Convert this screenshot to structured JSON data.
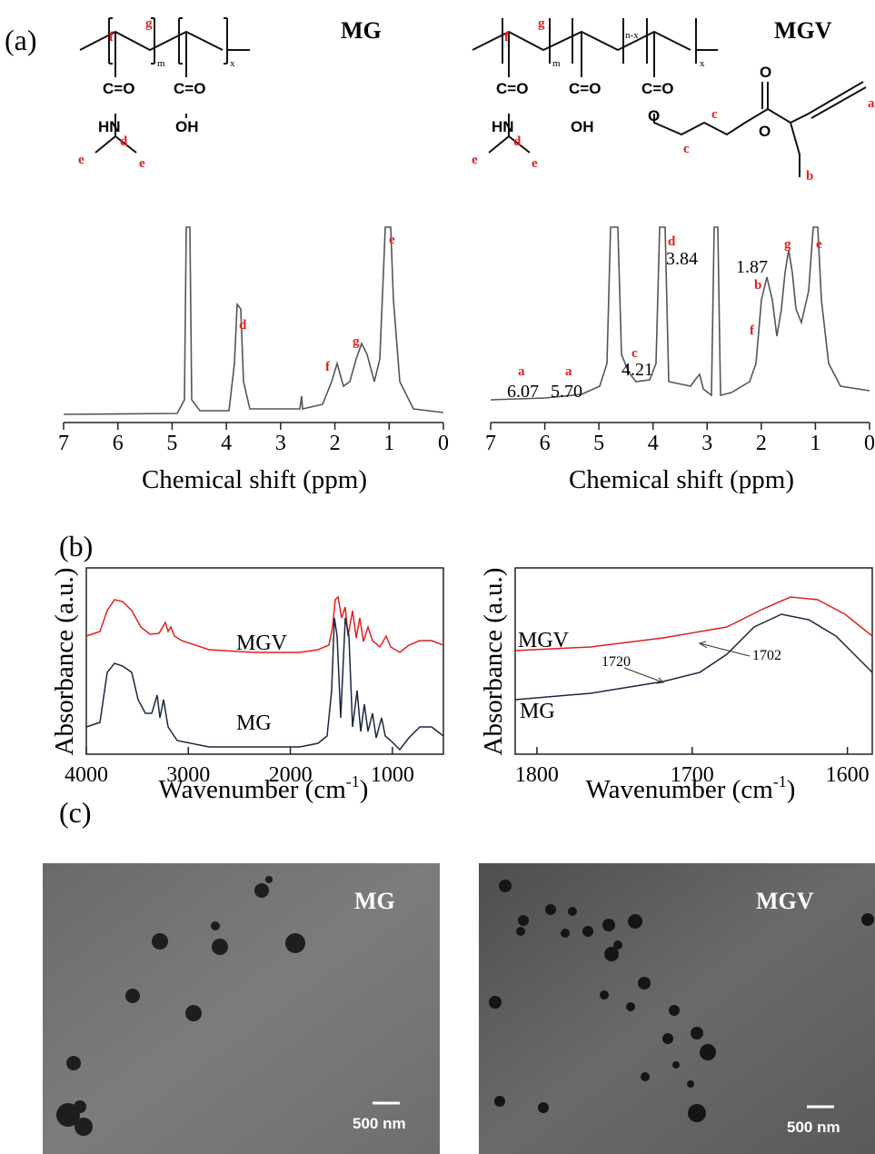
{
  "panel_labels": [
    "(a)",
    "(b)",
    "(c)"
  ],
  "nmr": [
    {
      "title": "MG",
      "x_label": "Chemical shift (ppm)",
      "xlim": [
        7,
        0
      ],
      "xticks": [
        7,
        6,
        5,
        4,
        3,
        2,
        1,
        0
      ],
      "structure": {
        "groups": [
          "C=O",
          "C=O",
          "HN",
          "OH"
        ],
        "letters": [
          "f",
          "g",
          "m",
          "x",
          "d",
          "e",
          "e"
        ]
      },
      "peaks": [
        "d",
        "f",
        "g",
        "e"
      ]
    },
    {
      "title": "MGV",
      "x_label": "Chemical shift (ppm)",
      "xlim": [
        7,
        0
      ],
      "xticks": [
        7,
        6,
        5,
        4,
        3,
        2,
        1,
        0
      ],
      "structure": {
        "groups": [
          "C=O",
          "C=O",
          "C=O",
          "HN",
          "OH",
          "O",
          "O",
          "O"
        ],
        "letters": [
          "f",
          "g",
          "m",
          "n-x",
          "x",
          "d",
          "e",
          "e",
          "c",
          "c",
          "a",
          "b"
        ]
      },
      "peaks": [
        {
          "letter": "a",
          "shift": "6.07"
        },
        {
          "letter": "a",
          "shift": "5.70"
        },
        {
          "letter": "c",
          "shift": "4.21"
        },
        {
          "letter": "d",
          "shift": "3.84"
        },
        {
          "letter": "b",
          "shift": "1.87"
        },
        {
          "letter": "f"
        },
        {
          "letter": "g"
        },
        {
          "letter": "e"
        }
      ]
    }
  ],
  "ir": [
    {
      "y_label": "Absorbance (a.u.)",
      "x_label": {
        "text": "Wavenumber (cm",
        "sup": "-1",
        "close": ")"
      },
      "xlim": [
        4000,
        500
      ],
      "xticks": [
        4000,
        3000,
        2000,
        1000
      ],
      "series": [
        "MGV",
        "MG"
      ]
    },
    {
      "y_label": "Absorbance (a.u.)",
      "x_label": {
        "text": "Wavenumber (cm",
        "sup": "-1",
        "close": ")"
      },
      "xlim": [
        1814,
        1584
      ],
      "xticks": [
        1800,
        1700,
        1600
      ],
      "series": [
        "MGV",
        "MG"
      ],
      "annotations": [
        "1702",
        "1720"
      ]
    }
  ],
  "tem": [
    {
      "label": "MG",
      "scale": "500 nm"
    },
    {
      "label": "MGV",
      "scale": "500 nm"
    }
  ]
}
